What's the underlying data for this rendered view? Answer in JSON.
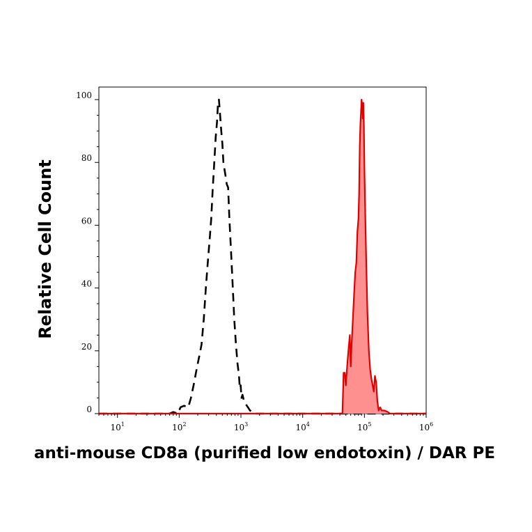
{
  "chart_data": {
    "type": "area",
    "xlabel": "anti-mouse CD8a (purified low endotoxin) / DAR PE",
    "ylabel": "Relative Cell Count",
    "x_scale": "log",
    "xlim": [
      5,
      1000000
    ],
    "ylim": [
      0,
      104
    ],
    "grid": false,
    "legend": "none",
    "x_ticks": [
      {
        "base": "10",
        "exp": "1",
        "value": 10
      },
      {
        "base": "10",
        "exp": "2",
        "value": 100
      },
      {
        "base": "10",
        "exp": "3",
        "value": 1000
      },
      {
        "base": "10",
        "exp": "4",
        "value": 10000
      },
      {
        "base": "10",
        "exp": "5",
        "value": 100000
      },
      {
        "base": "10",
        "exp": "6",
        "value": 1000000
      }
    ],
    "y_ticks": [
      {
        "label": "0",
        "value": 0
      },
      {
        "label": "20",
        "value": 20
      },
      {
        "label": "40",
        "value": 40
      },
      {
        "label": "60",
        "value": 60
      },
      {
        "label": "80",
        "value": 80
      },
      {
        "label": "100",
        "value": 100
      }
    ],
    "series": [
      {
        "style": "dashed",
        "color": "#000000",
        "filled": false,
        "points": [
          [
            5,
            0
          ],
          [
            70,
            0
          ],
          [
            80,
            0.5
          ],
          [
            95,
            0
          ],
          [
            105,
            2
          ],
          [
            120,
            2.5
          ],
          [
            140,
            2
          ],
          [
            155,
            5
          ],
          [
            175,
            10
          ],
          [
            195,
            15
          ],
          [
            210,
            18
          ],
          [
            230,
            22
          ],
          [
            250,
            30
          ],
          [
            270,
            40
          ],
          [
            290,
            48
          ],
          [
            310,
            55
          ],
          [
            330,
            62
          ],
          [
            350,
            72
          ],
          [
            370,
            80
          ],
          [
            390,
            88
          ],
          [
            410,
            93
          ],
          [
            425,
            99
          ],
          [
            440,
            100
          ],
          [
            460,
            95
          ],
          [
            480,
            90
          ],
          [
            500,
            86
          ],
          [
            520,
            80
          ],
          [
            540,
            78
          ],
          [
            560,
            76
          ],
          [
            590,
            73
          ],
          [
            620,
            72
          ],
          [
            650,
            62
          ],
          [
            690,
            52
          ],
          [
            730,
            42
          ],
          [
            780,
            30
          ],
          [
            830,
            22
          ],
          [
            880,
            16
          ],
          [
            930,
            12
          ],
          [
            960,
            8
          ],
          [
            990,
            9
          ],
          [
            1020,
            5
          ],
          [
            1060,
            6
          ],
          [
            1120,
            4
          ],
          [
            1200,
            3
          ],
          [
            1300,
            2
          ],
          [
            1400,
            1
          ],
          [
            1550,
            0.5
          ],
          [
            1700,
            0
          ],
          [
            1000000,
            0
          ]
        ]
      },
      {
        "style": "solid",
        "color": "#e00000",
        "fill": "#ff9090",
        "filled": true,
        "points": [
          [
            5,
            0
          ],
          [
            44000,
            0
          ],
          [
            46000,
            13
          ],
          [
            48000,
            13
          ],
          [
            50000,
            9
          ],
          [
            52000,
            14
          ],
          [
            55000,
            20
          ],
          [
            58000,
            25
          ],
          [
            60000,
            15
          ],
          [
            62000,
            22
          ],
          [
            65000,
            30
          ],
          [
            68000,
            38
          ],
          [
            71000,
            45
          ],
          [
            74000,
            48
          ],
          [
            77000,
            58
          ],
          [
            80000,
            62
          ],
          [
            82000,
            70
          ],
          [
            84000,
            85
          ],
          [
            86000,
            92
          ],
          [
            88000,
            96
          ],
          [
            90000,
            100
          ],
          [
            92000,
            98
          ],
          [
            94000,
            94
          ],
          [
            96000,
            99
          ],
          [
            98000,
            92
          ],
          [
            100000,
            78
          ],
          [
            104000,
            60
          ],
          [
            108000,
            45
          ],
          [
            112000,
            32
          ],
          [
            118000,
            20
          ],
          [
            124000,
            14
          ],
          [
            130000,
            11
          ],
          [
            136000,
            9
          ],
          [
            142000,
            7
          ],
          [
            148000,
            12
          ],
          [
            155000,
            10
          ],
          [
            162000,
            4
          ],
          [
            170000,
            1
          ],
          [
            180000,
            2
          ],
          [
            190000,
            1
          ],
          [
            210000,
            1
          ],
          [
            240000,
            0.5
          ],
          [
            260000,
            0
          ],
          [
            1000000,
            0
          ]
        ]
      }
    ]
  }
}
